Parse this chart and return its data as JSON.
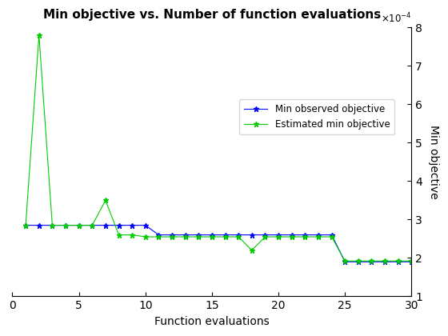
{
  "title": "Min objective vs. Number of function evaluations",
  "xlabel": "Function evaluations",
  "ylabel": "Min objective",
  "xlim": [
    0,
    30
  ],
  "ylim": [
    0.0001,
    0.0008
  ],
  "blue_x": [
    1,
    2,
    3,
    4,
    5,
    6,
    7,
    8,
    9,
    10,
    11,
    12,
    13,
    14,
    15,
    16,
    17,
    18,
    19,
    20,
    21,
    22,
    23,
    24,
    25,
    26,
    27,
    28,
    29,
    30
  ],
  "blue_y": [
    0.000285,
    0.000285,
    0.000285,
    0.000285,
    0.000285,
    0.000285,
    0.000285,
    0.000285,
    0.000285,
    0.000285,
    0.00026,
    0.00026,
    0.00026,
    0.00026,
    0.00026,
    0.00026,
    0.00026,
    0.00026,
    0.00026,
    0.00026,
    0.00026,
    0.00026,
    0.00026,
    0.00026,
    0.00019,
    0.00019,
    0.00019,
    0.00019,
    0.00019,
    0.00019
  ],
  "green_x": [
    1,
    2,
    3,
    4,
    5,
    6,
    7,
    8,
    9,
    10,
    11,
    12,
    13,
    14,
    15,
    16,
    17,
    18,
    19,
    20,
    21,
    22,
    23,
    24,
    25,
    26,
    27,
    28,
    29,
    30
  ],
  "green_y": [
    0.000285,
    0.00078,
    0.000285,
    0.000285,
    0.000285,
    0.000285,
    0.00035,
    0.00026,
    0.00026,
    0.000255,
    0.000255,
    0.000255,
    0.000255,
    0.000255,
    0.000255,
    0.000255,
    0.000255,
    0.00022,
    0.000255,
    0.000255,
    0.000255,
    0.000255,
    0.000255,
    0.000255,
    0.000192,
    0.000192,
    0.000192,
    0.000192,
    0.000192,
    0.000192
  ],
  "blue_color": "#0000ff",
  "green_color": "#00cc00",
  "marker": "*",
  "markersize": 5,
  "linewidth": 0.8,
  "legend_labels": [
    "Min observed objective",
    "Estimated min objective"
  ],
  "background_color": "#ffffff",
  "title_fontsize": 11,
  "axis_label_fontsize": 10,
  "yticks": [
    0.0001,
    0.0002,
    0.0003,
    0.0004,
    0.0005,
    0.0006,
    0.0007,
    0.0008
  ],
  "xticks": [
    0,
    5,
    10,
    15,
    20,
    25,
    30
  ]
}
